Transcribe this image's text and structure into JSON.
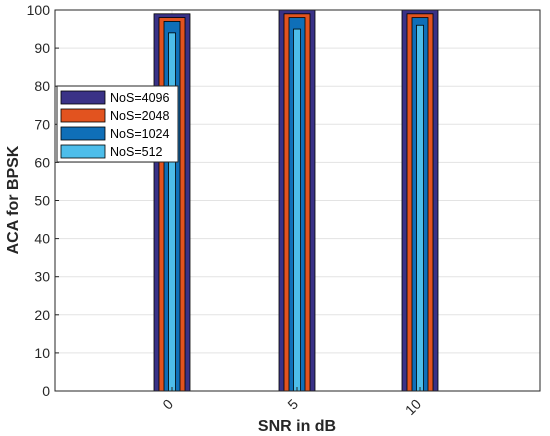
{
  "chart_data": {
    "type": "bar",
    "style": "nested-overlaid",
    "categories": [
      "0",
      "5",
      "10"
    ],
    "xlabel": "SNR in dB",
    "ylabel": "ACA for BPSK",
    "ylim": [
      0,
      100
    ],
    "yticks": [
      0,
      10,
      20,
      30,
      40,
      50,
      60,
      70,
      80,
      90,
      100
    ],
    "grid": true,
    "legend_placement": "left-upper",
    "series": [
      {
        "name": "NoS=4096",
        "color": "#3a3287",
        "values": [
          99,
          100,
          100
        ]
      },
      {
        "name": "NoS=2048",
        "color": "#e2531f",
        "values": [
          98,
          99,
          99
        ]
      },
      {
        "name": "NoS=1024",
        "color": "#0f6fb8",
        "values": [
          97,
          98,
          98
        ]
      },
      {
        "name": "NoS=512",
        "color": "#4dbdea",
        "values": [
          94,
          95,
          96
        ]
      }
    ]
  }
}
